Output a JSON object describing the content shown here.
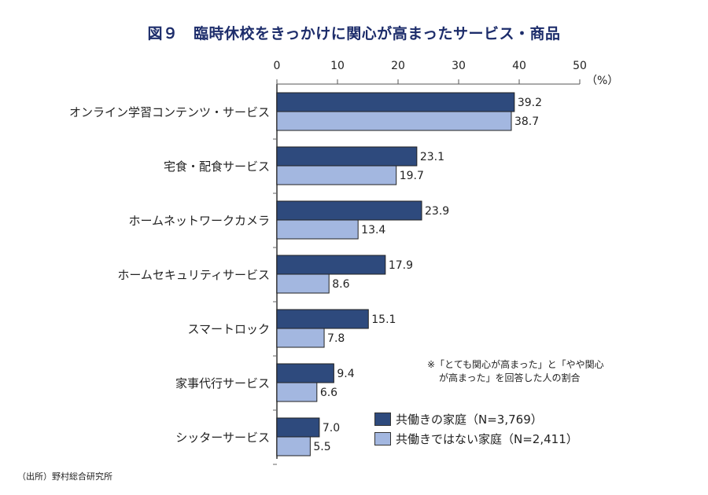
{
  "title": "図９　臨時休校をきっかけに関心が高まったサービス・商品",
  "chart_data": {
    "type": "bar",
    "orientation": "horizontal",
    "title": "図９　臨時休校をきっかけに関心が高まったサービス・商品",
    "xlabel": "",
    "unit_label": "（%）",
    "xlim": [
      0,
      50
    ],
    "ticks": [
      0,
      10,
      20,
      30,
      40,
      50
    ],
    "grid": false,
    "legend_position": "bottom-right",
    "categories": [
      "オンライン学習コンテンツ・サービス",
      "宅食・配食サービス",
      "ホームネットワークカメラ",
      "ホームセキュリティサービス",
      "スマートロック",
      "家事代行サービス",
      "シッターサービス"
    ],
    "series": [
      {
        "name": "共働きの家庭（N=3,769）",
        "color": "#2e4a7d",
        "values": [
          39.2,
          23.1,
          23.9,
          17.9,
          15.1,
          9.4,
          7.0
        ],
        "labels": [
          "39.2",
          "23.1",
          "23.9",
          "17.9",
          "15.1",
          "9.4",
          "7.0"
        ]
      },
      {
        "name": "共働きではない家庭（N=2,411）",
        "color": "#a3b7e0",
        "values": [
          38.7,
          19.7,
          13.4,
          8.6,
          7.8,
          6.6,
          5.5
        ],
        "labels": [
          "38.7",
          "19.7",
          "13.4",
          "8.6",
          "7.8",
          "6.6",
          "5.5"
        ]
      }
    ]
  },
  "note": {
    "line1": "※「とても関心が高まった」と「やや関心",
    "line2": "が高まった」を回答した人の割合"
  },
  "source": "（出所）野村総合研究所"
}
